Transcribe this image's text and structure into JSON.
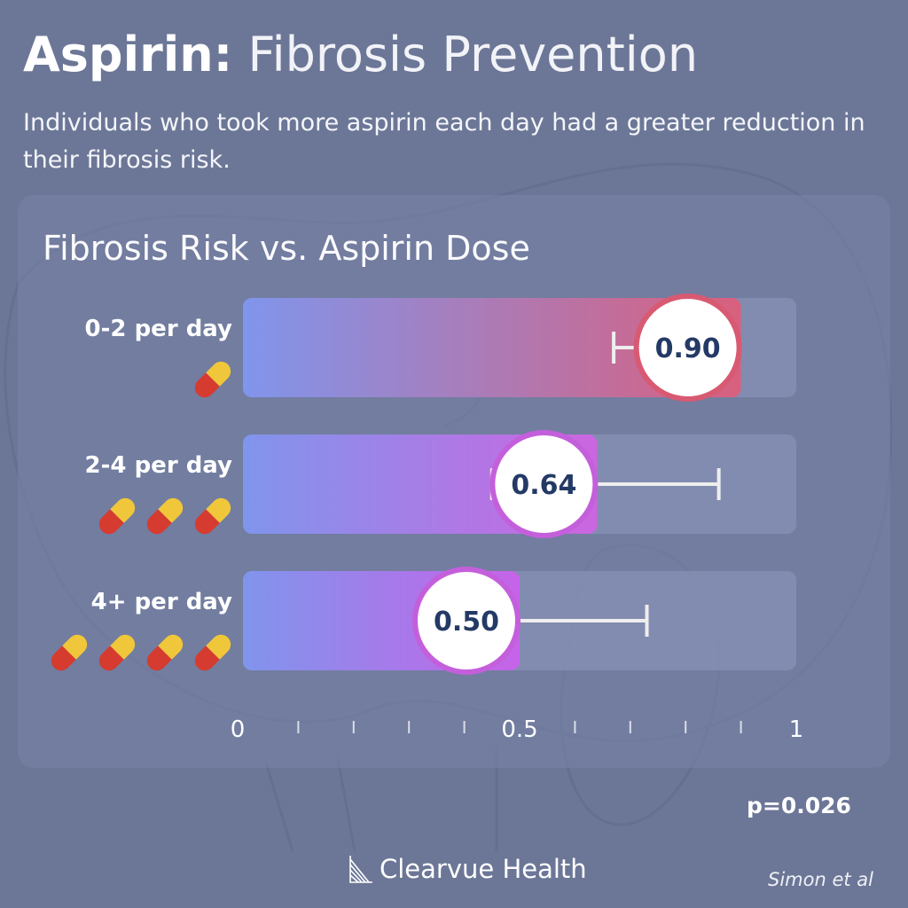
{
  "header": {
    "title_bold": "Aspirin:",
    "title_light": "Fibrosis Prevention",
    "subtitle": "Individuals who took more aspirin each day had a greater reduction in their fibrosis risk."
  },
  "chart_data": {
    "type": "bar",
    "orientation": "horizontal",
    "title": "Fibrosis Risk vs. Aspirin Dose",
    "categories": [
      "0-2 per day",
      "2-4 per day",
      "4+ per day"
    ],
    "pill_counts": [
      1,
      3,
      4
    ],
    "values": [
      0.9,
      0.64,
      0.5
    ],
    "value_labels": [
      "0.90",
      "0.64",
      "0.50"
    ],
    "error_low": [
      0.67,
      0.45,
      0.35
    ],
    "error_high": [
      0.9,
      0.86,
      0.73
    ],
    "xlim": [
      0,
      1
    ],
    "x_ticks": [
      {
        "value": 0,
        "label": "0"
      },
      {
        "value": 0.5,
        "label": "0.5"
      },
      {
        "value": 1,
        "label": "1"
      }
    ],
    "minor_ticks": [
      0.1,
      0.2,
      0.3,
      0.4,
      0.6,
      0.7,
      0.8,
      0.9
    ],
    "colors": {
      "bar_start": "#8095ec",
      "bar_end_0": "#d9607e",
      "bar_end_1": "#cc66e0",
      "bar_end_2": "#c663e8",
      "circle_border_0": "#d85a72",
      "circle_border_1": "#c45fdc",
      "circle_border_2": "#c45fdc",
      "value_text": "#243a66",
      "error_bar": "#eeeeee"
    },
    "grid": false
  },
  "footer": {
    "p_value": "p=0.026",
    "source": "Simon et al",
    "brand": "Clearvue Health"
  }
}
